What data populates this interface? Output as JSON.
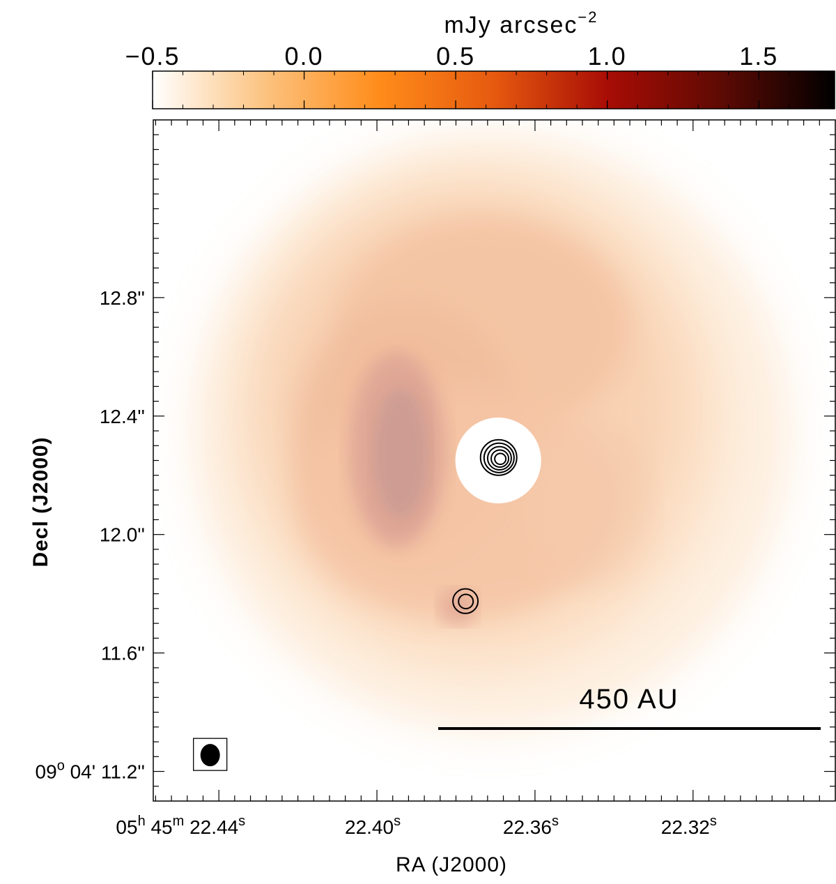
{
  "chart_data": {
    "type": "heatmap",
    "colorbar": {
      "title": "mJy arcsec",
      "title_exponent": "−2",
      "range": [
        -0.5,
        1.75
      ],
      "ticks": [
        {
          "value": -0.5,
          "label": "−0.5"
        },
        {
          "value": 0.0,
          "label": "0.0"
        },
        {
          "value": 0.5,
          "label": "0.5"
        },
        {
          "value": 1.0,
          "label": "1.0"
        },
        {
          "value": 1.5,
          "label": "1.5"
        }
      ],
      "colormap": [
        "#ffffff",
        "#fcc27e",
        "#ff8c1a",
        "#e65a0f",
        "#a80d05",
        "#5e0a04",
        "#000000"
      ]
    },
    "xaxis": {
      "label": "RA (J2000)",
      "direction": "decreasing",
      "range_seconds": [
        22.4566,
        22.284
      ],
      "prefix": {
        "h": "05",
        "h_sup": "h",
        "m": "45",
        "m_sup": "m"
      },
      "ticks": [
        {
          "value": 22.44,
          "label": "22.44",
          "sup": "s",
          "prefixed": true
        },
        {
          "value": 22.4,
          "label": "22.40",
          "sup": "s",
          "prefixed": false
        },
        {
          "value": 22.36,
          "label": "22.36",
          "sup": "s",
          "prefixed": false
        },
        {
          "value": 22.32,
          "label": "22.32",
          "sup": "s",
          "prefixed": false
        }
      ],
      "minor_step": 0.004
    },
    "yaxis": {
      "label": "Decl (J2000)",
      "range_arcsec": [
        11.1,
        13.4
      ],
      "prefix": {
        "d": "09",
        "d_sup": "o",
        "m": "04'"
      },
      "ticks": [
        {
          "value": 11.2,
          "label": "11.2''",
          "prefixed": true
        },
        {
          "value": 11.6,
          "label": "11.6''",
          "prefixed": false
        },
        {
          "value": 12.0,
          "label": "12.0''",
          "prefixed": false
        },
        {
          "value": 12.4,
          "label": "12.4''",
          "prefixed": false
        },
        {
          "value": 12.8,
          "label": "12.8''",
          "prefixed": false
        }
      ],
      "minor_step": 0.05
    },
    "central_mask": {
      "ra": 22.3693,
      "dec": 12.25,
      "radius_arcsec": 0.145
    },
    "contour_sources": [
      {
        "name": "primary",
        "ra": 22.3692,
        "dec": 12.26,
        "levels": 5
      },
      {
        "name": "companion",
        "ra": 22.3776,
        "dec": 11.775,
        "levels": 2
      }
    ],
    "scale_bar": {
      "label": "450 AU"
    },
    "beam": {
      "ra": 22.4422,
      "dec": 11.255
    }
  }
}
